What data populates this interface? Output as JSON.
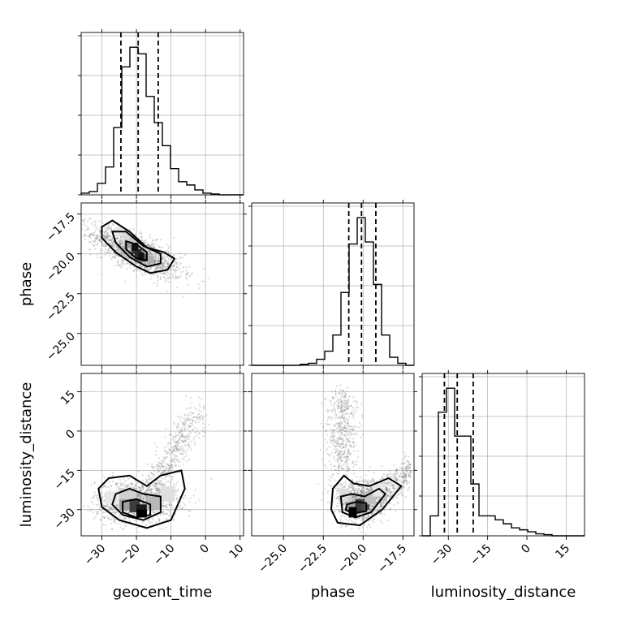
{
  "chart_data": {
    "type": "corner",
    "parameters": [
      "geocent_time",
      "phase",
      "luminosity_distance"
    ],
    "colors": {
      "line": "#000000",
      "points": "#7a7a7a",
      "grid": "#b0b0b0"
    },
    "grid": true,
    "axes": {
      "geocent_time": {
        "label": "geocent_time",
        "range": [
          -36,
          11
        ],
        "ticks": [
          -30,
          -20,
          -10,
          0,
          10
        ],
        "tick_labels": [
          "−30",
          "−20",
          "−10",
          "0",
          "10"
        ]
      },
      "phase": {
        "label": "phase",
        "range": [
          -27.0,
          -16.8
        ],
        "ticks": [
          -25.0,
          -22.5,
          -20.0,
          -17.5
        ],
        "tick_labels": [
          "−25.0",
          "−22.5",
          "−20.0",
          "−17.5"
        ]
      },
      "luminosity_distance": {
        "label": "luminosity_distance",
        "range": [
          -40,
          22
        ],
        "ticks": [
          -30,
          -15,
          0,
          15
        ],
        "tick_labels": [
          "−30",
          "−15",
          "0",
          "15"
        ]
      }
    },
    "histograms": [
      {
        "parameter": "geocent_time",
        "bin_edges": [
          -36,
          -33.65,
          -31.3,
          -28.95,
          -26.6,
          -24.25,
          -21.9,
          -19.55,
          -17.2,
          -14.85,
          -12.5,
          -10.15,
          -7.8,
          -5.45,
          -3.1,
          -0.75,
          1.6,
          3.95,
          6.3,
          8.65,
          11
        ],
        "counts": [
          1,
          2,
          7,
          17,
          41,
          78,
          90,
          86,
          60,
          44,
          30,
          16,
          8,
          6,
          3,
          1,
          0.5,
          0,
          0,
          0
        ],
        "quantiles": [
          -24.5,
          -19.5,
          -13.7
        ]
      },
      {
        "parameter": "phase",
        "bin_edges": [
          -27.0,
          -26.49,
          -25.98,
          -25.47,
          -24.96,
          -24.45,
          -23.94,
          -23.43,
          -22.92,
          -22.41,
          -21.9,
          -21.39,
          -20.88,
          -20.37,
          -19.86,
          -19.35,
          -18.84,
          -18.33,
          -17.82,
          -17.31,
          -16.8
        ],
        "counts": [
          0,
          0,
          0,
          0,
          0,
          0,
          0.5,
          1,
          3,
          7,
          15,
          36,
          60,
          73,
          61,
          40,
          15,
          4,
          1,
          0
        ],
        "quantiles": [
          -20.9,
          -20.1,
          -19.2
        ]
      },
      {
        "parameter": "luminosity_distance",
        "bin_edges": [
          -40,
          -36.9,
          -33.8,
          -30.7,
          -27.6,
          -24.5,
          -21.4,
          -18.3,
          -15.2,
          -12.1,
          -9.0,
          -5.9,
          -2.8,
          0.3,
          3.4,
          6.5,
          9.6,
          12.7,
          15.8,
          18.9,
          22.0
        ],
        "counts": [
          0,
          5,
          31,
          37,
          25,
          25,
          13,
          5,
          5,
          4,
          3,
          2,
          1.5,
          1,
          0.5,
          0.3,
          0,
          0,
          0,
          0
        ],
        "quantiles": [
          -31.5,
          -26.6,
          -20.5
        ]
      }
    ],
    "joint": [
      {
        "x": "geocent_time",
        "y": "phase",
        "peak": [
          -20.0,
          -19.8
        ],
        "contour_levels": 3
      },
      {
        "x": "geocent_time",
        "y": "luminosity_distance",
        "peak": [
          -19.5,
          -29.5
        ],
        "contour_levels": 3
      },
      {
        "x": "phase",
        "y": "luminosity_distance",
        "peak": [
          -20.1,
          -29.5
        ],
        "contour_levels": 3
      }
    ]
  }
}
